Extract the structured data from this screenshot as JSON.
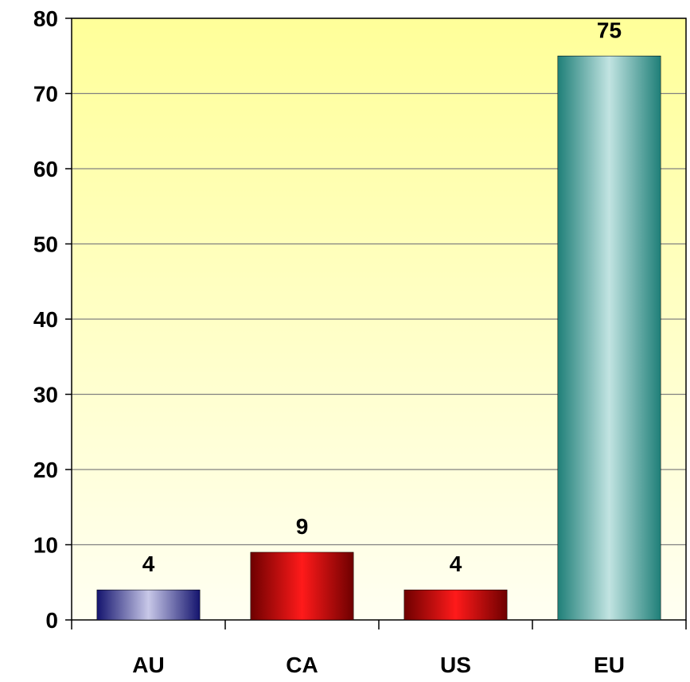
{
  "chart_data": {
    "type": "bar",
    "categories": [
      "AU",
      "CA",
      "US",
      "EU"
    ],
    "values": [
      4,
      9,
      4,
      75
    ],
    "data_labels": [
      "4",
      "9",
      "4",
      "75"
    ],
    "ylim": [
      0,
      80
    ],
    "yticks": [
      0,
      10,
      20,
      30,
      40,
      50,
      60,
      70,
      80
    ],
    "grid": true,
    "legend": "none",
    "colors": {
      "plot_background_top": "#FFFF99",
      "plot_background_bottom": "#FFFFF0",
      "AU": "#1F1F7A",
      "CA": "#8B0000",
      "US": "#8B0000",
      "EU": "#2E8B7F"
    }
  }
}
